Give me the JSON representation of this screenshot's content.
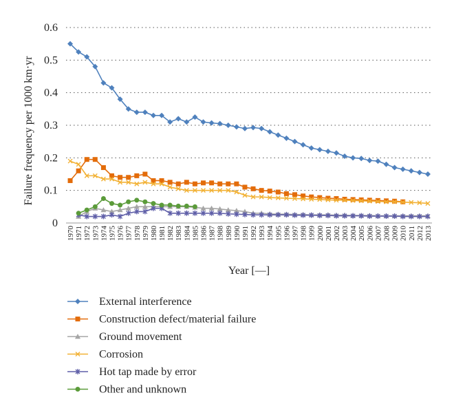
{
  "chart_data": {
    "type": "line",
    "title": "",
    "xlabel": "Year [—]",
    "ylabel": "Failure frequency per 1000 km·yr",
    "ylim": [
      0,
      0.6
    ],
    "yticks": [
      "0",
      "0.1",
      "0.2",
      "0.3",
      "0.4",
      "0.5",
      "0.6"
    ],
    "grid": "horizontal dotted",
    "legend_position": "bottom",
    "categories": [
      "1970",
      "1971",
      "1972",
      "1973",
      "1974",
      "1975",
      "1976",
      "1977",
      "1978",
      "1979",
      "1980",
      "1981",
      "1982",
      "1983",
      "1984",
      "1985",
      "1986",
      "1987",
      "1988",
      "1989",
      "1990",
      "1991",
      "1992",
      "1993",
      "1994",
      "1995",
      "1996",
      "1997",
      "1998",
      "1999",
      "2000",
      "2001",
      "2002",
      "2003",
      "2004",
      "2005",
      "2006",
      "2007",
      "2008",
      "2009",
      "2010",
      "2011",
      "2012",
      "2013"
    ],
    "series": [
      {
        "name": "External interference",
        "color": "#4F81BD",
        "marker": "diamond",
        "values": [
          0.55,
          0.525,
          0.51,
          0.48,
          0.43,
          0.415,
          0.38,
          0.35,
          0.34,
          0.34,
          0.33,
          0.33,
          0.31,
          0.32,
          0.31,
          0.325,
          0.31,
          0.307,
          0.305,
          0.3,
          0.295,
          0.29,
          0.293,
          0.29,
          0.28,
          0.27,
          0.26,
          0.25,
          0.24,
          0.23,
          0.225,
          0.22,
          0.215,
          0.205,
          0.2,
          0.198,
          0.192,
          0.19,
          0.18,
          0.17,
          0.165,
          0.16,
          0.155,
          0.15
        ]
      },
      {
        "name": "Construction defect/material failure",
        "color": "#E36C0A",
        "marker": "square",
        "values": [
          0.13,
          0.16,
          0.195,
          0.195,
          0.17,
          0.145,
          0.14,
          0.14,
          0.145,
          0.15,
          0.13,
          0.13,
          0.125,
          0.12,
          0.125,
          0.12,
          0.123,
          0.123,
          0.12,
          0.12,
          0.12,
          0.11,
          0.105,
          0.1,
          0.098,
          0.095,
          0.09,
          0.087,
          0.083,
          0.08,
          0.078,
          0.076,
          0.075,
          0.073,
          0.072,
          0.071,
          0.07,
          0.069,
          0.068,
          0.067,
          0.065,
          null,
          null,
          null
        ]
      },
      {
        "name": "Ground movement",
        "color": "#A6A6A6",
        "marker": "triangle",
        "values": [
          null,
          0.02,
          0.035,
          0.045,
          0.04,
          0.035,
          0.04,
          0.045,
          0.05,
          0.05,
          0.05,
          0.05,
          0.05,
          0.05,
          0.05,
          0.048,
          0.045,
          0.045,
          0.043,
          0.04,
          0.038,
          0.035,
          0.03,
          0.03,
          0.028,
          0.027,
          0.027,
          0.026,
          0.026,
          0.025,
          0.025,
          0.025,
          0.024,
          0.024,
          0.023,
          0.023,
          0.023,
          0.022,
          0.022,
          0.022,
          0.022,
          0.022,
          0.022,
          0.022
        ]
      },
      {
        "name": "Corrosion",
        "color": "#F2B134",
        "marker": "x",
        "values": [
          0.19,
          0.18,
          0.145,
          0.145,
          0.135,
          0.135,
          0.125,
          0.125,
          0.12,
          0.125,
          0.12,
          0.12,
          0.11,
          0.105,
          0.1,
          0.1,
          0.1,
          0.1,
          0.1,
          0.1,
          0.095,
          0.085,
          0.08,
          0.08,
          0.078,
          0.077,
          0.076,
          0.075,
          0.074,
          0.073,
          0.072,
          0.071,
          0.07,
          0.07,
          0.069,
          0.068,
          0.067,
          0.066,
          0.065,
          0.065,
          0.064,
          0.063,
          0.062,
          0.06
        ]
      },
      {
        "name": "Hot tap made by error",
        "color": "#5F5FA8",
        "marker": "star",
        "values": [
          null,
          0.025,
          0.02,
          0.02,
          0.02,
          0.025,
          0.02,
          0.03,
          0.035,
          0.035,
          0.045,
          0.045,
          0.03,
          0.03,
          0.03,
          0.03,
          0.03,
          0.03,
          0.03,
          0.028,
          0.027,
          0.026,
          0.025,
          0.025,
          0.025,
          0.025,
          0.025,
          0.024,
          0.024,
          0.024,
          0.023,
          0.023,
          0.022,
          0.022,
          0.022,
          0.022,
          0.021,
          0.021,
          0.021,
          0.021,
          0.02,
          0.02,
          0.02,
          0.02
        ]
      },
      {
        "name": "Other and unknown",
        "color": "#5B9B3A",
        "marker": "circle",
        "values": [
          null,
          0.03,
          0.04,
          0.05,
          0.075,
          0.06,
          0.055,
          0.065,
          0.07,
          0.065,
          0.06,
          0.055,
          0.055,
          0.052,
          0.052,
          0.05,
          null,
          null,
          null,
          null,
          null,
          null,
          null,
          null,
          null,
          null,
          null,
          null,
          null,
          null,
          null,
          null,
          null,
          null,
          null,
          null,
          null,
          null,
          null,
          null,
          null,
          null,
          null,
          null
        ]
      }
    ]
  }
}
